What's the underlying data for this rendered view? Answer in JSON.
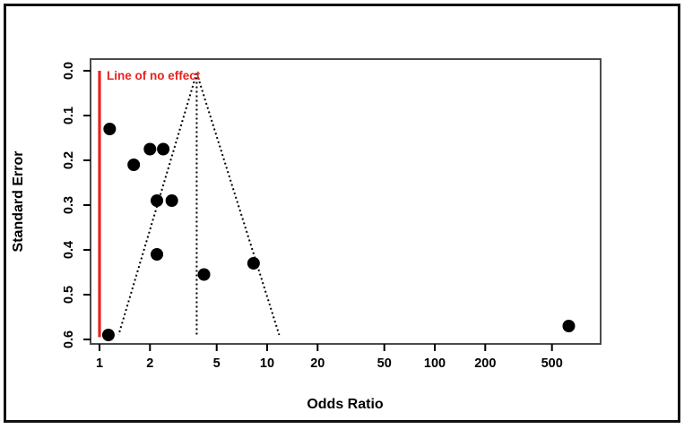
{
  "figure": {
    "background": "#ffffff",
    "outer_border_color": "#111111",
    "plot_box_color": "#4b4b4b"
  },
  "chart_data": {
    "type": "scatter",
    "subtype": "funnel-plot",
    "title": "",
    "xlabel": "Odds Ratio",
    "ylabel": "Standard Error",
    "x_scale": "log10",
    "x_ticks": [
      1,
      2,
      5,
      10,
      20,
      50,
      100,
      200,
      500
    ],
    "x_range": [
      1,
      900
    ],
    "y_ticks": [
      "0.0",
      "0.1",
      "0.2",
      "0.3",
      "0.4",
      "0.5",
      "0.6"
    ],
    "y_tick_values": [
      0.0,
      0.1,
      0.2,
      0.3,
      0.4,
      0.5,
      0.6
    ],
    "y_range": [
      0.0,
      0.6
    ],
    "grid": false,
    "legend": "none",
    "annotation": {
      "text": "Line of no effect",
      "color": "#e8231f"
    },
    "no_effect_line": {
      "x_or": 1.0,
      "se_from": 0.0,
      "se_to": 0.595,
      "color": "#e8231f"
    },
    "funnel": {
      "apex_or": 3.8,
      "apex_se": 0.005,
      "left_bottom_or": 1.3,
      "right_bottom_or": 11.8,
      "bottom_se": 0.59,
      "line_style": "dotted",
      "color": "#000000"
    },
    "points": [
      {
        "or": 1.15,
        "se": 0.13
      },
      {
        "or": 1.6,
        "se": 0.21
      },
      {
        "or": 2.0,
        "se": 0.175
      },
      {
        "or": 2.4,
        "se": 0.175
      },
      {
        "or": 2.2,
        "se": 0.29
      },
      {
        "or": 2.7,
        "se": 0.29
      },
      {
        "or": 2.2,
        "se": 0.41
      },
      {
        "or": 4.2,
        "se": 0.455
      },
      {
        "or": 8.3,
        "se": 0.43
      },
      {
        "or": 1.13,
        "se": 0.59
      },
      {
        "or": 630,
        "se": 0.57
      }
    ],
    "point_color": "#000000",
    "point_radius": 7
  }
}
